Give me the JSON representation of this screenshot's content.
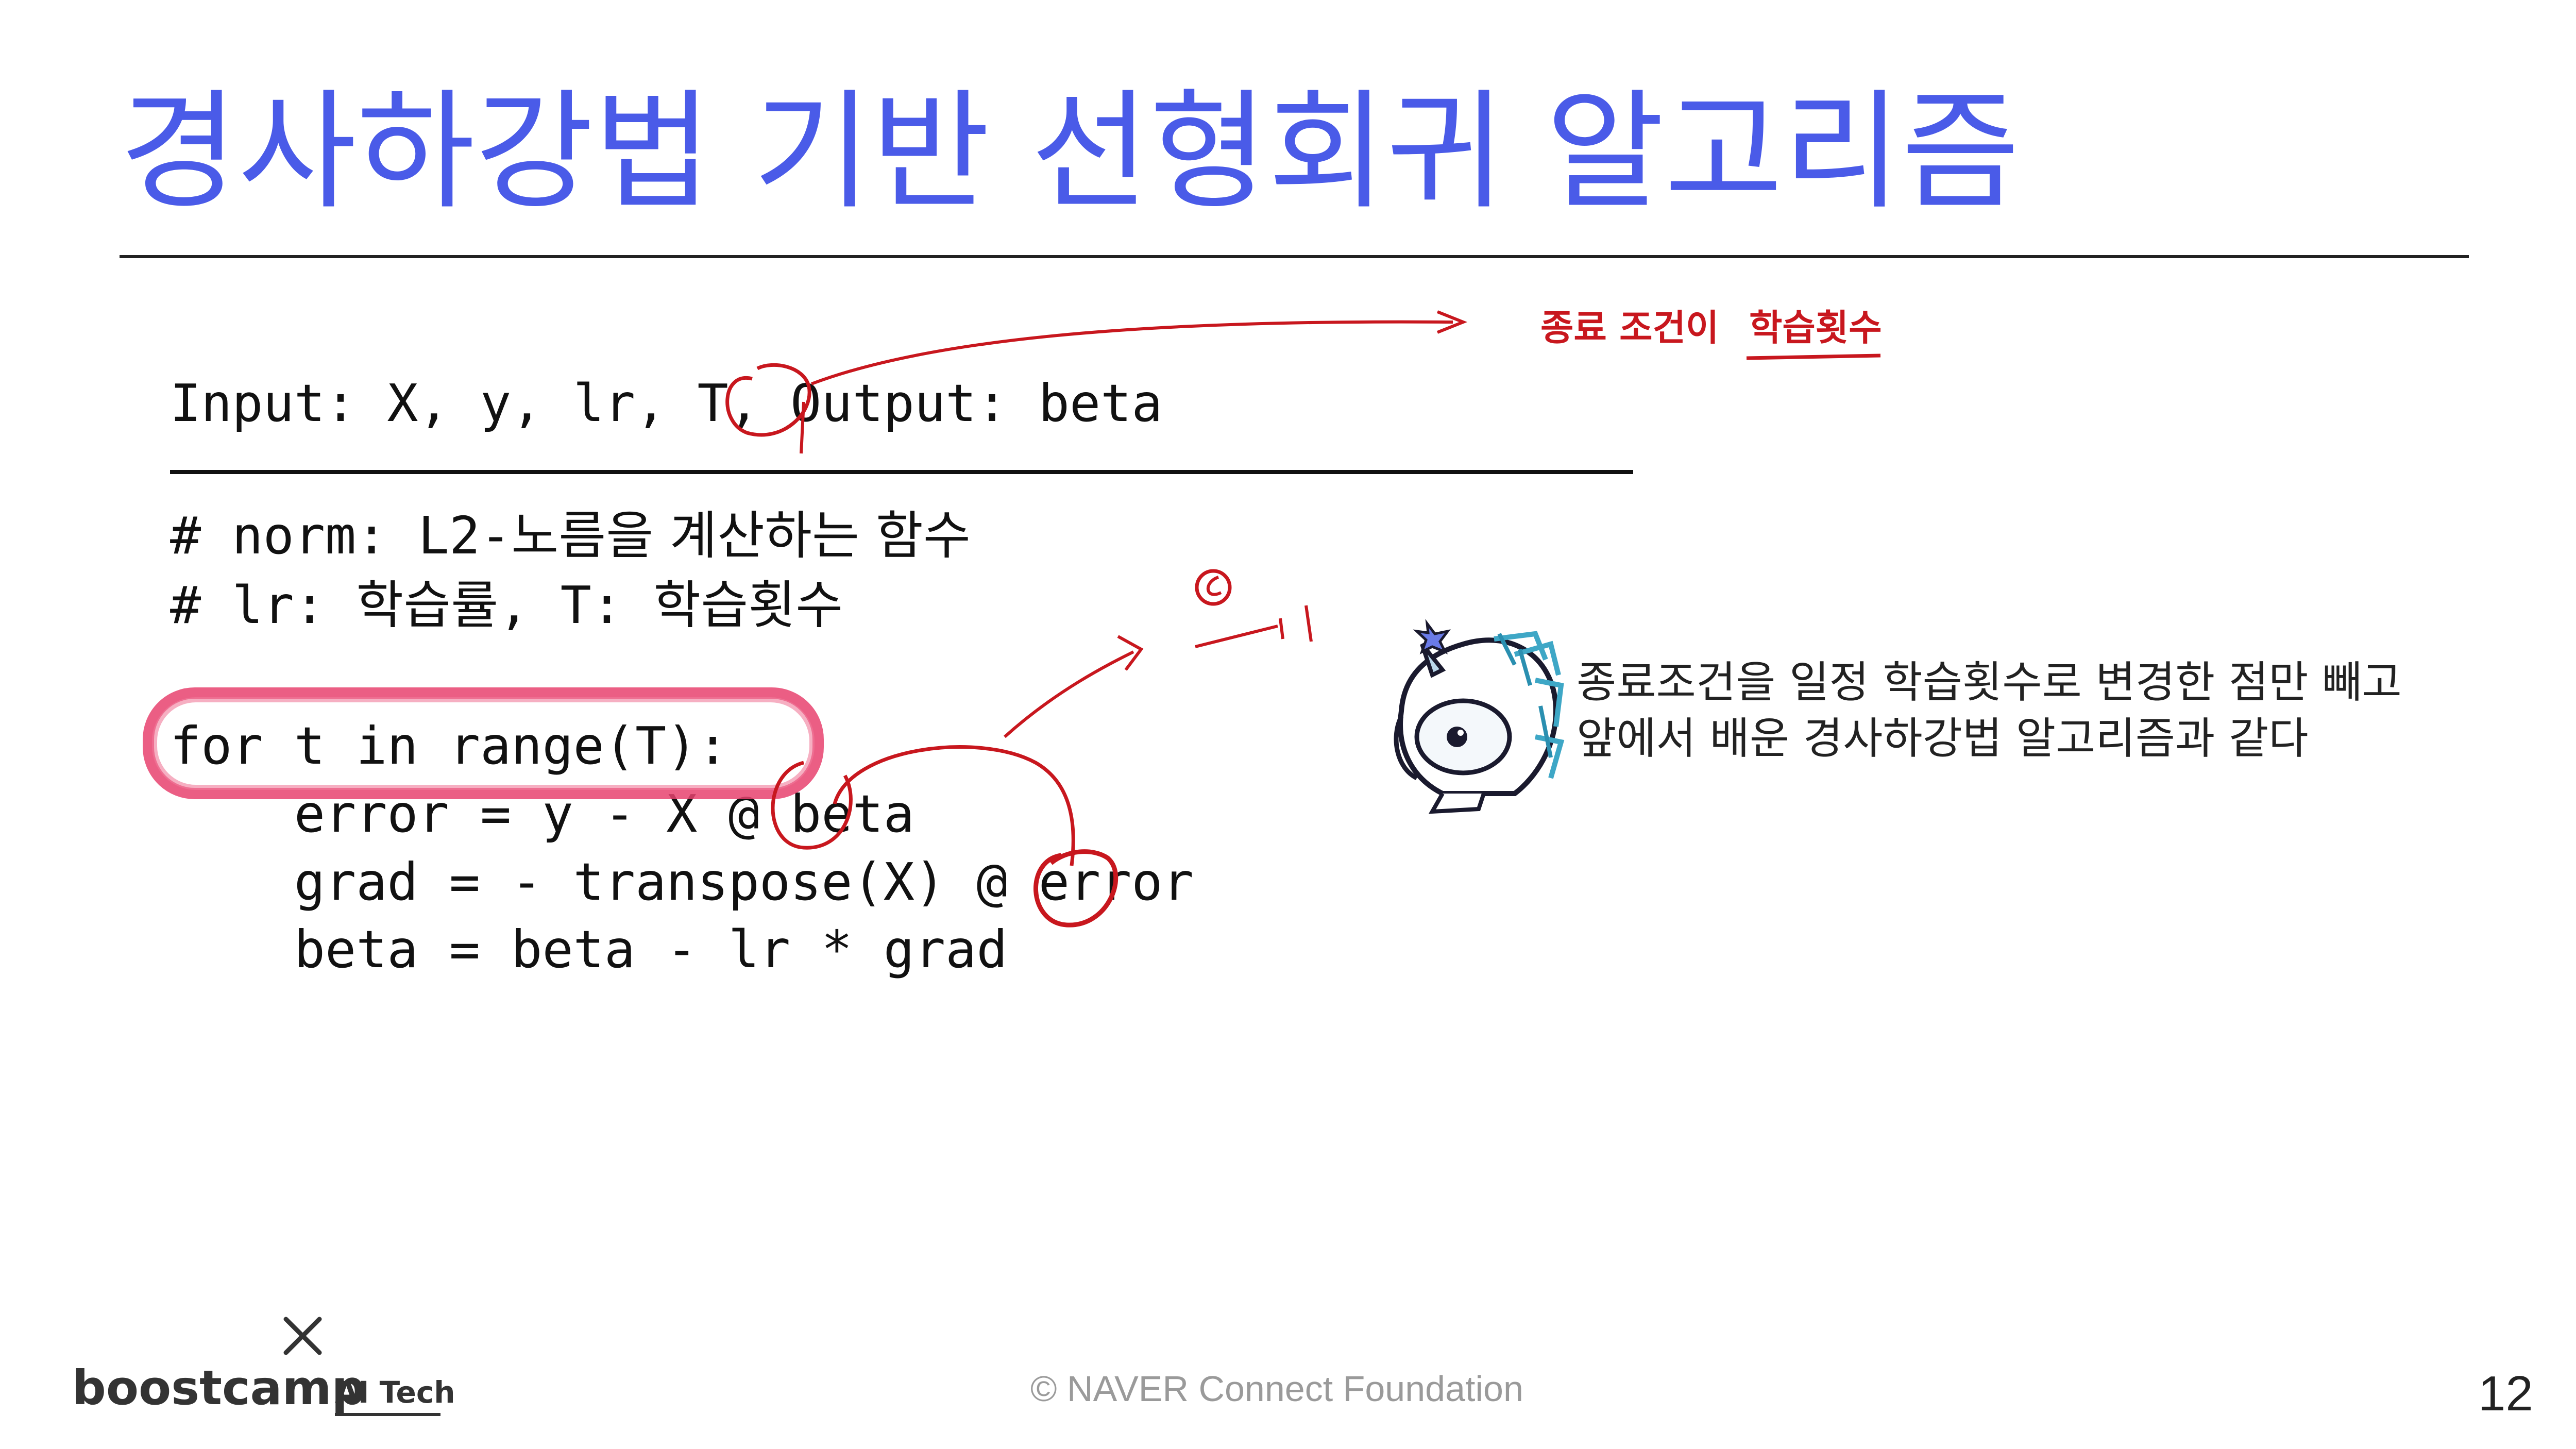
{
  "slide": {
    "title": "경사하강법 기반 선형회귀 알고리즘",
    "page_number": "12",
    "footer": "©  NAVER Connect Foundation",
    "logo": {
      "word": "boostcamp",
      "sub": "AI Tech"
    }
  },
  "code": {
    "signature": "Input: X, y, lr, T, Output: beta",
    "comment_norm_prefix": "# norm: L2-",
    "comment_norm_text": "노름을 계산하는 함수",
    "comment_lr_prefix": "# lr: ",
    "comment_lr_text1": "학습률",
    "comment_lr_mid": ", T: ",
    "comment_lr_text2": "학습횟수",
    "loop": "for t in range(T):",
    "line1": "    error = y - X @ beta",
    "line2": "    grad = - transpose(X) @ error",
    "line3": "    beta = beta - lr * grad"
  },
  "callout": {
    "line1": "종료조건을 일정 학습횟수로 변경한 점만 빼고",
    "line2": "앞에서 배운 경사하강법 알고리즘과 같다"
  },
  "handwriting": {
    "note1": "종료 조건이",
    "note2": "학습횟수"
  },
  "colors": {
    "title": "#4a5be8",
    "annotation_red": "#c8171e",
    "highlight_pink": "#e8426e"
  },
  "icons": {
    "mascot": "boostcamp-unicorn-mascot",
    "logo_mark": "x-mark-icon"
  }
}
